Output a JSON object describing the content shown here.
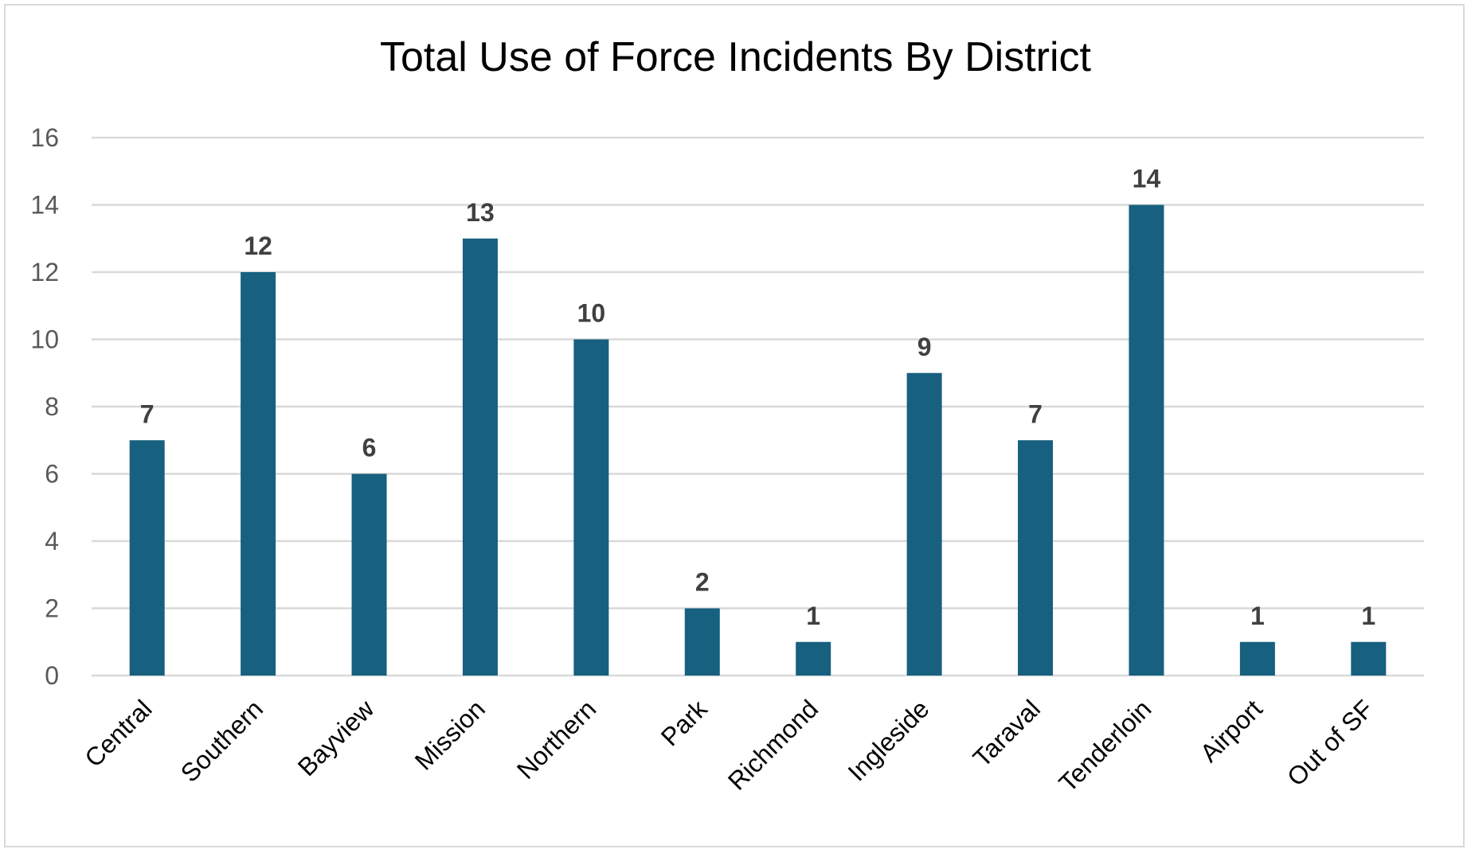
{
  "chart_data": {
    "type": "bar",
    "title": "Total Use of Force Incidents By District",
    "xlabel": "",
    "ylabel": "",
    "categories": [
      "Central",
      "Southern",
      "Bayview",
      "Mission",
      "Northern",
      "Park",
      "Richmond",
      "Ingleside",
      "Taraval",
      "Tenderloin",
      "Airport",
      "Out of SF"
    ],
    "values": [
      7,
      12,
      6,
      13,
      10,
      2,
      1,
      9,
      7,
      14,
      1,
      1
    ],
    "ylim": [
      0,
      16
    ],
    "yticks": [
      "0",
      "2",
      "4",
      "6",
      "8",
      "10",
      "12",
      "14",
      "16"
    ],
    "grid": true,
    "data_labels": true,
    "bar_color": "#17607f",
    "grid_color": "#d9d9d9"
  }
}
